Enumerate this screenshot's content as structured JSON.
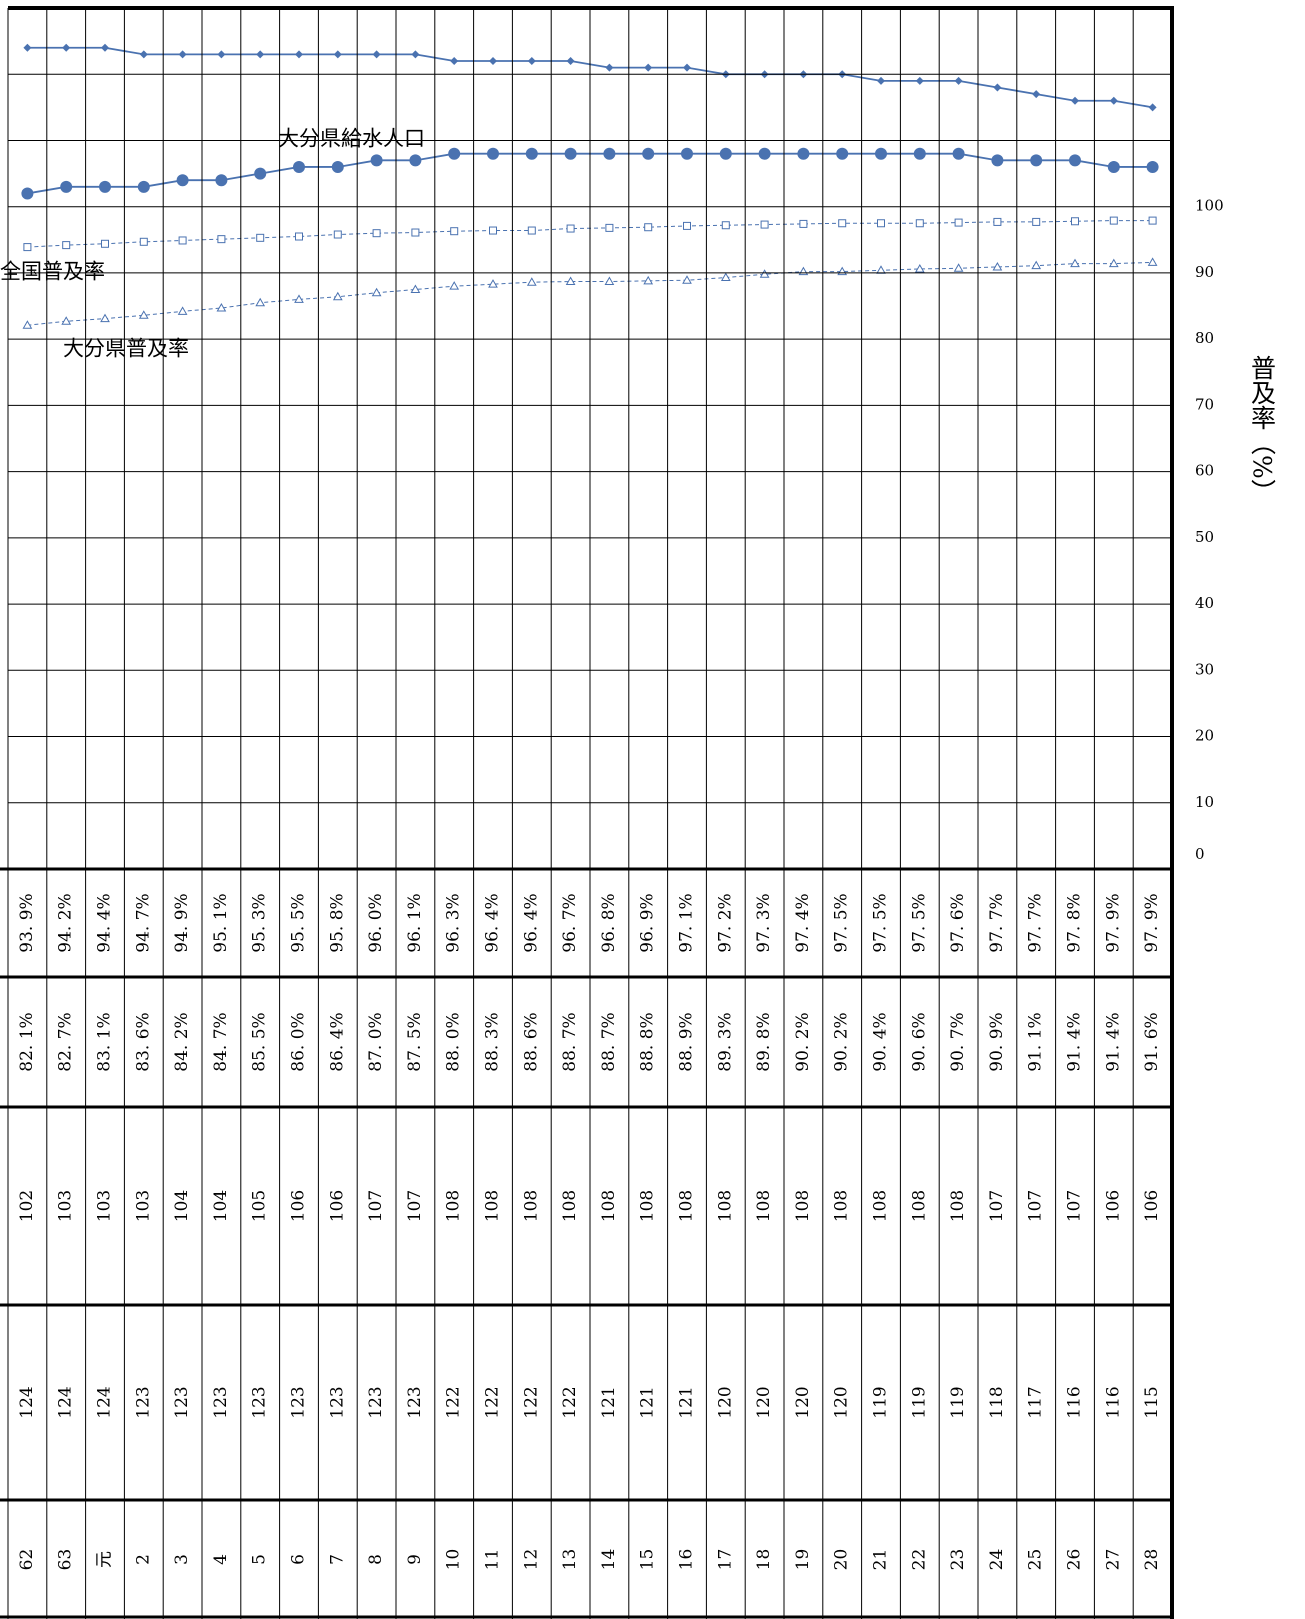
{
  "chart_data": {
    "type": "line",
    "y_label": "普及率（%）",
    "categories": [
      "62",
      "63",
      "元",
      "2",
      "3",
      "4",
      "5",
      "6",
      "7",
      "8",
      "9",
      "10",
      "11",
      "12",
      "13",
      "14",
      "15",
      "16",
      "17",
      "18",
      "19",
      "20",
      "21",
      "22",
      "23",
      "24",
      "25",
      "26",
      "27",
      "28"
    ],
    "ylim": [
      0,
      130
    ],
    "yticks": [
      0,
      10,
      20,
      30,
      40,
      50,
      60,
      70,
      80,
      90,
      100
    ],
    "grid": true,
    "series": [
      {
        "color": "#4a72b0",
        "marker": "diamond",
        "dashed": false,
        "values": [
          124,
          124,
          124,
          123,
          123,
          123,
          123,
          123,
          123,
          123,
          123,
          122,
          122,
          122,
          122,
          121,
          121,
          121,
          120,
          120,
          120,
          120,
          119,
          119,
          119,
          118,
          117,
          116,
          116,
          115
        ]
      },
      {
        "name": "大分県給水人口",
        "color": "#4a72b0",
        "marker": "circle",
        "dashed": false,
        "values": [
          102,
          103,
          103,
          103,
          104,
          104,
          105,
          106,
          106,
          107,
          107,
          108,
          108,
          108,
          108,
          108,
          108,
          108,
          108,
          108,
          108,
          108,
          108,
          108,
          108,
          107,
          107,
          107,
          106,
          106
        ]
      },
      {
        "name": "全国普及率",
        "color": "#4a72b0",
        "marker": "square",
        "dashed": true,
        "values": [
          93.9,
          94.2,
          94.4,
          94.7,
          94.9,
          95.1,
          95.3,
          95.5,
          95.8,
          96.0,
          96.1,
          96.3,
          96.4,
          96.4,
          96.7,
          96.8,
          96.9,
          97.1,
          97.2,
          97.3,
          97.4,
          97.5,
          97.5,
          97.5,
          97.6,
          97.7,
          97.7,
          97.8,
          97.9,
          97.9
        ],
        "value_labels": [
          "93. 9%",
          "94. 2%",
          "94. 4%",
          "94. 7%",
          "94. 9%",
          "95. 1%",
          "95. 3%",
          "95. 5%",
          "95. 8%",
          "96. 0%",
          "96. 1%",
          "96. 3%",
          "96. 4%",
          "96. 4%",
          "96. 7%",
          "96. 8%",
          "96. 9%",
          "97. 1%",
          "97. 2%",
          "97. 3%",
          "97. 4%",
          "97. 5%",
          "97. 5%",
          "97. 5%",
          "97. 6%",
          "97. 7%",
          "97. 7%",
          "97. 8%",
          "97. 9%",
          "97. 9%"
        ]
      },
      {
        "name": "大分県普及率",
        "color": "#4a72b0",
        "marker": "triangle",
        "dashed": true,
        "values": [
          82.1,
          82.7,
          83.1,
          83.6,
          84.2,
          84.7,
          85.5,
          86.0,
          86.4,
          87.0,
          87.5,
          88.0,
          88.3,
          88.6,
          88.7,
          88.7,
          88.8,
          88.9,
          89.3,
          89.8,
          90.2,
          90.2,
          90.4,
          90.6,
          90.7,
          90.9,
          91.1,
          91.4,
          91.4,
          91.6
        ],
        "value_labels": [
          "82. 1%",
          "82. 7%",
          "83. 1%",
          "83. 6%",
          "84. 2%",
          "84. 7%",
          "85. 5%",
          "86. 0%",
          "86. 4%",
          "87. 0%",
          "87. 5%",
          "88. 0%",
          "88. 3%",
          "88. 6%",
          "88. 7%",
          "88. 7%",
          "88. 8%",
          "88. 9%",
          "89. 3%",
          "89. 8%",
          "90. 2%",
          "90. 2%",
          "90. 4%",
          "90. 6%",
          "90. 7%",
          "90. 9%",
          "91. 1%",
          "91. 4%",
          "91. 4%",
          "91. 6%"
        ]
      }
    ]
  }
}
